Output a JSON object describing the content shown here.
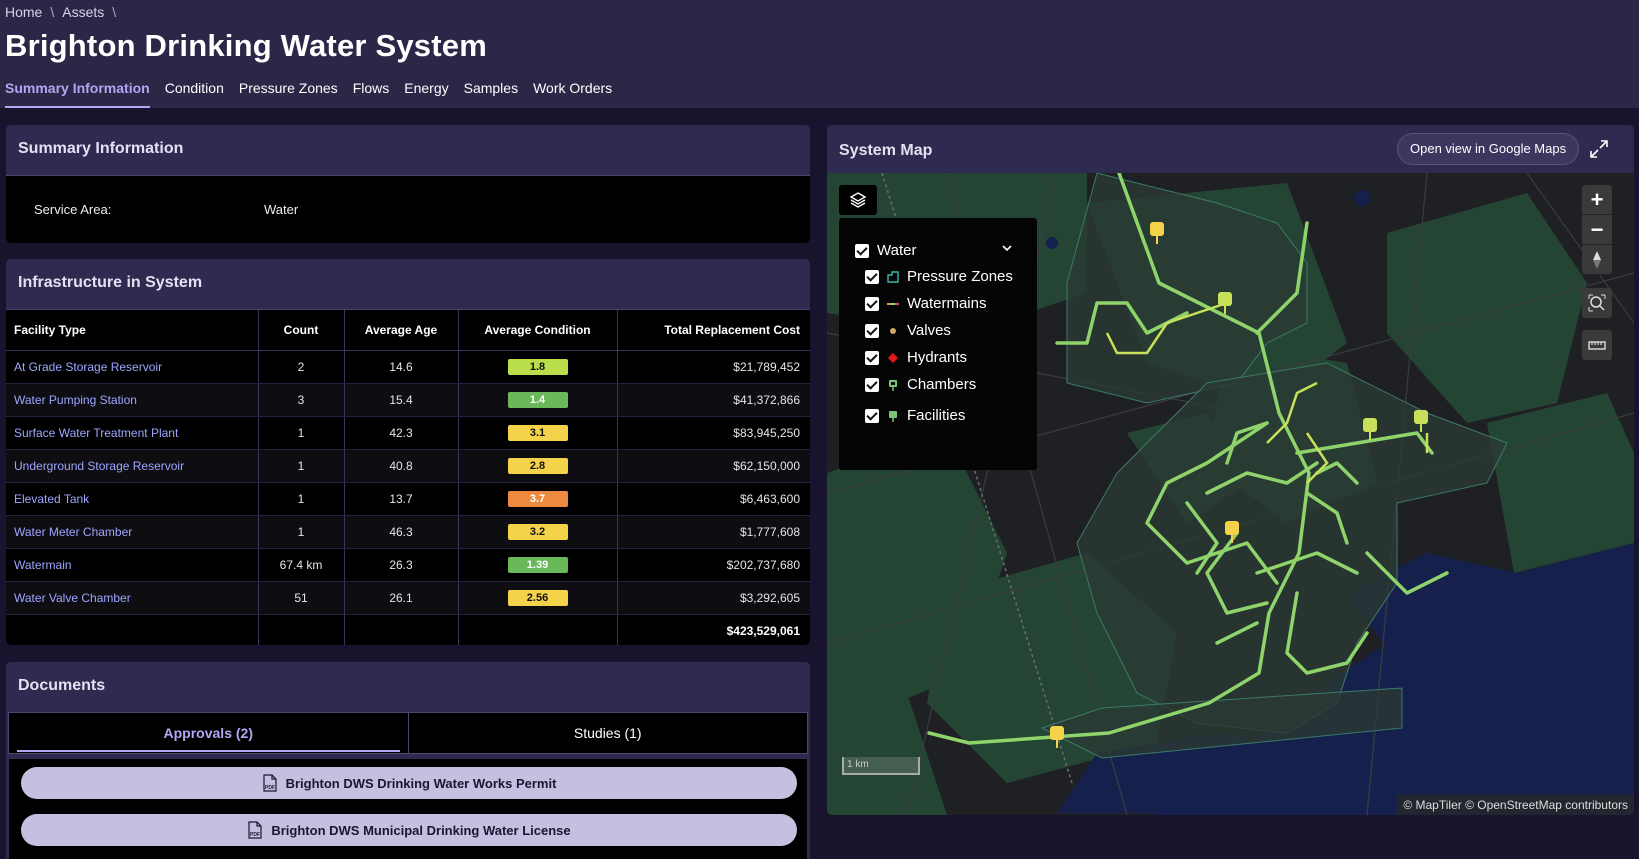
{
  "breadcrumb": {
    "home": "Home",
    "sep": "\\",
    "assets": "Assets"
  },
  "page_title": "Brighton Drinking Water System",
  "tabs": [
    "Summary Information",
    "Condition",
    "Pressure Zones",
    "Flows",
    "Energy",
    "Samples",
    "Work Orders"
  ],
  "summary": {
    "title": "Summary Information",
    "service_label": "Service Area:",
    "service_value": "Water"
  },
  "infrastructure": {
    "title": "Infrastructure in System",
    "columns": [
      "Facility Type",
      "Count",
      "Average Age",
      "Average Condition",
      "Total Replacement Cost"
    ],
    "rows": [
      {
        "type": "At Grade Storage Reservoir",
        "count": "2",
        "age": "14.6",
        "condition": "1.8",
        "cond_color": "c-lime",
        "cost": "$21,789,452"
      },
      {
        "type": "Water Pumping Station",
        "count": "3",
        "age": "15.4",
        "condition": "1.4",
        "cond_color": "c-green",
        "cost": "$41,372,866"
      },
      {
        "type": "Surface Water Treatment Plant",
        "count": "1",
        "age": "42.3",
        "condition": "3.1",
        "cond_color": "c-yellow",
        "cost": "$83,945,250"
      },
      {
        "type": "Underground Storage Reservoir",
        "count": "1",
        "age": "40.8",
        "condition": "2.8",
        "cond_color": "c-yellow",
        "cost": "$62,150,000"
      },
      {
        "type": "Elevated Tank",
        "count": "1",
        "age": "13.7",
        "condition": "3.7",
        "cond_color": "c-orange",
        "cost": "$6,463,600"
      },
      {
        "type": "Water Meter Chamber",
        "count": "1",
        "age": "46.3",
        "condition": "3.2",
        "cond_color": "c-yellow",
        "cost": "$1,777,608"
      },
      {
        "type": "Watermain",
        "count": "67.4 km",
        "age": "26.3",
        "condition": "1.39",
        "cond_color": "c-green",
        "cost": "$202,737,680"
      },
      {
        "type": "Water Valve Chamber",
        "count": "51",
        "age": "26.1",
        "condition": "2.56",
        "cond_color": "c-yellow",
        "cost": "$3,292,605"
      }
    ],
    "total_cost": "$423,529,061"
  },
  "documents": {
    "title": "Documents",
    "tabs": [
      "Approvals (2)",
      "Studies (1)"
    ],
    "items": [
      "Brighton DWS Drinking Water Works Permit",
      "Brighton DWS Municipal Drinking Water License"
    ]
  },
  "map": {
    "title": "System Map",
    "google_button": "Open view in Google Maps",
    "legend": {
      "group": "Water",
      "layers": [
        "Pressure Zones",
        "Watermains",
        "Valves",
        "Hydrants",
        "Chambers",
        "Facilities"
      ]
    },
    "scale": "1 km",
    "attribution": "© MapTiler © OpenStreetMap contributors",
    "colors": {
      "main": "#8fd46b",
      "zone": "#3b5a48",
      "facility": "#f4d34a",
      "water": "#15204a"
    }
  }
}
